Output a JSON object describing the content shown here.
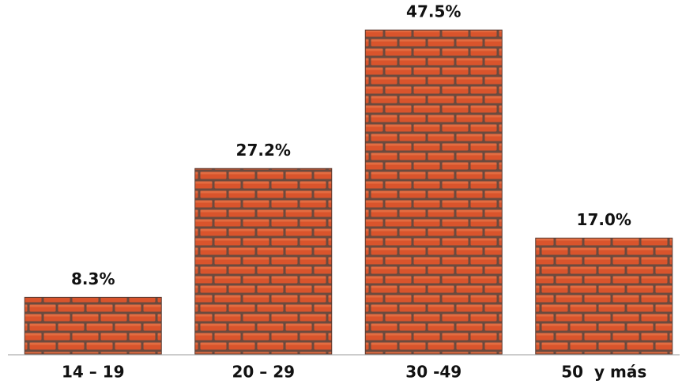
{
  "chart_data": {
    "type": "bar",
    "categories": [
      "14 – 19",
      "20 – 29",
      "30 -49",
      "50  y más"
    ],
    "values": [
      8.3,
      27.2,
      47.5,
      17.0
    ],
    "value_labels": [
      "8.3%",
      "27.2%",
      "47.5%",
      "17.0%"
    ],
    "color": "#d9542c"
  }
}
